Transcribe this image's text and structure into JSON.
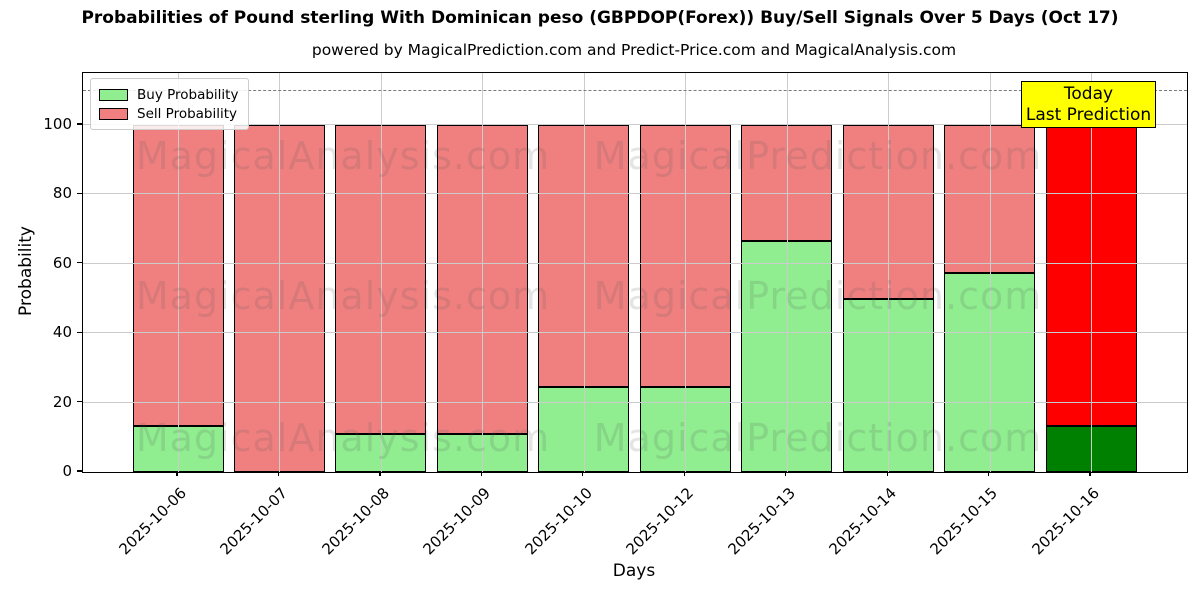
{
  "title": "Probabilities of Pound sterling With Dominican peso (GBPDOP(Forex)) Buy/Sell Signals Over 5 Days (Oct 17)",
  "subtitle": "powered by MagicalPrediction.com and Predict-Price.com and MagicalAnalysis.com",
  "legend": {
    "items": [
      {
        "label": "Buy Probability",
        "color": "#90EE90"
      },
      {
        "label": "Sell Probability",
        "color": "#F08080"
      }
    ]
  },
  "annotation": {
    "line1": "Today",
    "line2": "Last Prediction",
    "bg_color": "#FFFF00",
    "border_color": "#000000"
  },
  "watermark": {
    "left_text": "MagicalAnalysis.com",
    "right_text": "MagicalPrediction.com"
  },
  "axes": {
    "xlabel": "Days",
    "ylabel": "Probability",
    "yticks": [
      0,
      20,
      40,
      60,
      80,
      100
    ],
    "ylim": [
      0,
      115
    ],
    "dashed_line_y": 110,
    "grid": true
  },
  "chart_data": {
    "type": "bar",
    "stacked": true,
    "title": "Probabilities of Pound sterling With Dominican peso (GBPDOP(Forex)) Buy/Sell Signals Over 5 Days (Oct 17)",
    "xlabel": "Days",
    "ylabel": "Probability",
    "ylim": [
      0,
      115
    ],
    "categories": [
      "2025-10-06",
      "2025-10-07",
      "2025-10-08",
      "2025-10-09",
      "2025-10-10",
      "2025-10-12",
      "2025-10-13",
      "2025-10-14",
      "2025-10-15",
      "2025-10-16"
    ],
    "series": [
      {
        "name": "Buy Probability",
        "color": "#90EE90",
        "values": [
          13.3,
          0,
          11,
          11,
          24.5,
          24.5,
          66.7,
          50,
          57.5,
          13.3
        ]
      },
      {
        "name": "Sell Probability",
        "color": "#F08080",
        "values": [
          86.7,
          100,
          89,
          89,
          75.5,
          75.5,
          33.3,
          50,
          42.5,
          96.7
        ]
      }
    ],
    "today": {
      "category": "2025-10-16",
      "index": 9,
      "buy_color": "#008000",
      "sell_color": "#FF0000",
      "stack_total": 110
    },
    "legend_position": "upper left"
  }
}
